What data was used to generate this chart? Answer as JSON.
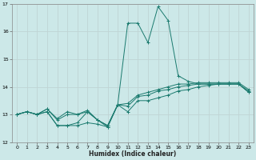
{
  "xlabel": "Humidex (Indice chaleur)",
  "x_values": [
    0,
    1,
    2,
    3,
    4,
    5,
    6,
    7,
    8,
    9,
    10,
    11,
    12,
    13,
    14,
    15,
    16,
    17,
    18,
    19,
    20,
    21,
    22,
    23
  ],
  "series": [
    [
      13.0,
      13.1,
      13.0,
      13.1,
      12.6,
      12.6,
      12.6,
      12.7,
      12.65,
      12.55,
      13.35,
      13.1,
      13.5,
      13.5,
      13.6,
      13.7,
      13.85,
      13.9,
      14.0,
      14.05,
      14.1,
      14.1,
      14.1,
      13.8
    ],
    [
      13.0,
      13.1,
      13.0,
      13.1,
      12.6,
      12.6,
      12.7,
      13.1,
      12.8,
      12.6,
      13.35,
      16.3,
      16.3,
      15.6,
      16.9,
      16.4,
      14.4,
      14.2,
      14.1,
      14.1,
      14.1,
      14.1,
      14.1,
      13.8
    ],
    [
      13.0,
      13.1,
      13.0,
      13.2,
      12.8,
      13.0,
      13.0,
      13.15,
      12.8,
      12.55,
      13.35,
      13.3,
      13.65,
      13.7,
      13.85,
      13.9,
      14.0,
      14.05,
      14.1,
      14.1,
      14.1,
      14.1,
      14.1,
      13.85
    ],
    [
      13.0,
      13.1,
      13.0,
      13.2,
      12.85,
      13.1,
      13.0,
      13.1,
      12.8,
      12.6,
      13.35,
      13.4,
      13.7,
      13.8,
      13.9,
      14.0,
      14.1,
      14.1,
      14.15,
      14.15,
      14.15,
      14.15,
      14.15,
      13.9
    ]
  ],
  "line_color": "#1a7a6e",
  "bg_color": "#cce8e8",
  "grid_color": "#aacccc",
  "ylim": [
    12,
    17
  ],
  "ytick_start": 17,
  "yticks": [
    12,
    13,
    14,
    15,
    16,
    17
  ],
  "xticks": [
    0,
    1,
    2,
    3,
    4,
    5,
    6,
    7,
    8,
    9,
    10,
    11,
    12,
    13,
    14,
    15,
    16,
    17,
    18,
    19,
    20,
    21,
    22,
    23
  ]
}
